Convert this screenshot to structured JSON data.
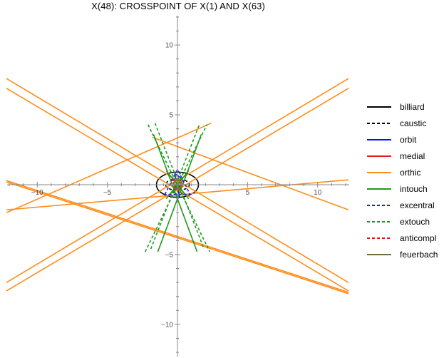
{
  "title": "X(48): CROSSPOINT OF X(1) AND X(63)",
  "chart_data": {
    "type": "line",
    "xlim": [
      -12.2,
      12.2
    ],
    "ylim": [
      -12.2,
      12.2
    ],
    "x_ticks": [
      {
        "value": -10,
        "label": "−10"
      },
      {
        "value": -5,
        "label": "−5"
      },
      {
        "value": 5,
        "label": "5"
      },
      {
        "value": 10,
        "label": "10"
      }
    ],
    "y_ticks": [
      {
        "value": 10,
        "label": "10"
      },
      {
        "value": 5,
        "label": "5"
      },
      {
        "value": -5,
        "label": "−5"
      },
      {
        "value": -10,
        "label": "−10"
      }
    ],
    "grid": false,
    "legend_position": "right",
    "series": [
      {
        "name": "billiard",
        "color": "#000000",
        "dashed": false,
        "ellipse": {
          "cx": 0,
          "cy": 0,
          "rx": 1.5,
          "ry": 0.9
        }
      },
      {
        "name": "caustic",
        "color": "#000000",
        "dashed": true,
        "ellipse": {
          "cx": 0,
          "cy": 0,
          "rx": 0.85,
          "ry": 0.4
        }
      },
      {
        "name": "orbit",
        "color": "#1010ff",
        "dashed": false,
        "segments": [
          [
            [
              -0.2,
              0.8
            ],
            [
              0.3,
              0.45
            ],
            [
              -0.3,
              -0.5
            ],
            [
              0.15,
              -0.85
            ],
            [
              -0.2,
              0.8
            ]
          ]
        ]
      },
      {
        "name": "medial",
        "color": "#e02020",
        "dashed": false,
        "segments": [
          [
            [
              0.05,
              0.45
            ],
            [
              0.3,
              -0.1
            ],
            [
              -0.25,
              -0.35
            ],
            [
              0.05,
              0.45
            ]
          ]
        ]
      },
      {
        "name": "orthic",
        "color": "#ff8c1a",
        "dashed": false,
        "segments": [
          [
            [
              -12.2,
              7.6
            ],
            [
              12.2,
              -7.0
            ]
          ],
          [
            [
              -12.2,
              6.9
            ],
            [
              12.2,
              -7.6
            ]
          ],
          [
            [
              -12.2,
              -7.0
            ],
            [
              12.2,
              7.6
            ]
          ],
          [
            [
              -12.2,
              -7.6
            ],
            [
              12.2,
              6.9
            ]
          ],
          [
            [
              -12.2,
              0.3
            ],
            [
              12.2,
              -7.7
            ]
          ],
          [
            [
              -12.2,
              0.2
            ],
            [
              12.2,
              -7.8
            ]
          ],
          [
            [
              -12.2,
              -2.0
            ],
            [
              2.4,
              4.4
            ]
          ],
          [
            [
              -1.8,
              3.4
            ],
            [
              12.2,
              -1.8
            ]
          ],
          [
            [
              -12.2,
              -1.8
            ],
            [
              12.2,
              0.35
            ]
          ]
        ]
      },
      {
        "name": "intouch",
        "color": "#1a9a1a",
        "dashed": false,
        "segments": [
          [
            [
              -1.7,
              3.6
            ],
            [
              1.4,
              -4.8
            ]
          ],
          [
            [
              -1.4,
              -4.8
            ],
            [
              1.7,
              3.6
            ]
          ],
          [
            [
              -0.8,
              1.0
            ],
            [
              0.8,
              -1.0
            ]
          ],
          [
            [
              -0.8,
              -1.0
            ],
            [
              0.8,
              1.0
            ]
          ]
        ]
      },
      {
        "name": "excentral",
        "color": "#2020dd",
        "dashed": true,
        "segments": [
          [
            [
              -0.9,
              -0.7
            ],
            [
              0.0,
              1.1
            ],
            [
              0.9,
              -0.7
            ],
            [
              -0.9,
              -0.7
            ]
          ]
        ]
      },
      {
        "name": "extouch",
        "color": "#1a9a1a",
        "dashed": true,
        "segments": [
          [
            [
              -2.1,
              4.3
            ],
            [
              2.3,
              -4.8
            ]
          ],
          [
            [
              -2.3,
              -4.8
            ],
            [
              2.1,
              4.3
            ]
          ],
          [
            [
              -1.6,
              4.4
            ],
            [
              1.9,
              -4.6
            ]
          ],
          [
            [
              -1.9,
              -4.6
            ],
            [
              1.6,
              4.4
            ]
          ]
        ]
      },
      {
        "name": "anticompl",
        "color": "#ee1111",
        "dashed": true,
        "segments": [
          [
            [
              -0.35,
              0.3
            ],
            [
              0.35,
              0.3
            ],
            [
              0.0,
              -0.5
            ],
            [
              -0.35,
              0.3
            ]
          ]
        ]
      },
      {
        "name": "feuerbach",
        "color": "#7a6a3a",
        "dashed": false,
        "ellipse": {
          "cx": 0.0,
          "cy": 0.0,
          "rx": 0.25,
          "ry": 0.35
        }
      }
    ]
  }
}
